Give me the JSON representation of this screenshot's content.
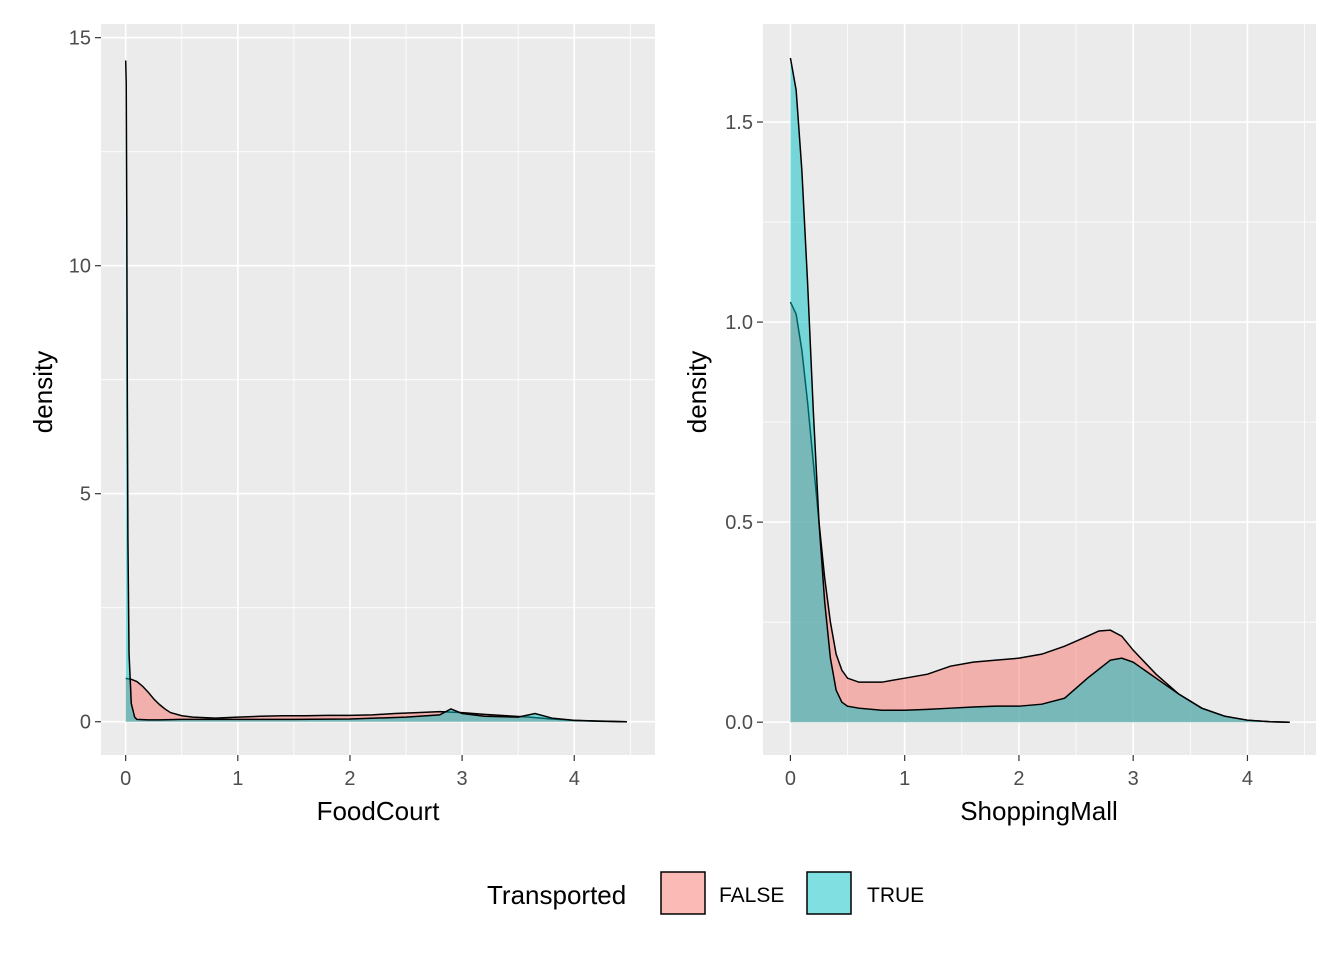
{
  "chart_data": [
    {
      "type": "area",
      "subtype": "density",
      "xlabel": "FoodCourt",
      "ylabel": "density",
      "xlim": [
        -0.22,
        4.72
      ],
      "ylim": [
        -0.73,
        15.3
      ],
      "x_ticks": [
        0,
        1,
        2,
        3,
        4
      ],
      "y_ticks": [
        0,
        5,
        10,
        15
      ],
      "grid": true,
      "series": [
        {
          "name": "FALSE",
          "x": [
            0,
            0.05,
            0.1,
            0.15,
            0.2,
            0.25,
            0.3,
            0.35,
            0.4,
            0.5,
            0.6,
            0.7,
            0.8,
            0.9,
            1.0,
            1.2,
            1.4,
            1.6,
            1.8,
            2.0,
            2.2,
            2.4,
            2.6,
            2.8,
            3.0,
            3.2,
            3.4,
            3.6,
            3.8,
            4.0,
            4.2,
            4.47
          ],
          "y": [
            0.95,
            0.93,
            0.88,
            0.78,
            0.65,
            0.5,
            0.38,
            0.28,
            0.2,
            0.13,
            0.1,
            0.09,
            0.08,
            0.09,
            0.1,
            0.12,
            0.13,
            0.13,
            0.14,
            0.14,
            0.15,
            0.18,
            0.2,
            0.22,
            0.2,
            0.16,
            0.13,
            0.1,
            0.06,
            0.03,
            0.01,
            0.0
          ]
        },
        {
          "name": "TRUE",
          "x": [
            0,
            0.005,
            0.01,
            0.015,
            0.02,
            0.03,
            0.05,
            0.08,
            0.1,
            0.2,
            0.3,
            0.5,
            1.0,
            1.5,
            2.0,
            2.5,
            2.8,
            2.9,
            3.0,
            3.2,
            3.5,
            3.65,
            3.8,
            4.0,
            4.47
          ],
          "y": [
            14.5,
            14.0,
            11.0,
            7.0,
            4.0,
            1.5,
            0.4,
            0.1,
            0.05,
            0.04,
            0.04,
            0.05,
            0.05,
            0.05,
            0.06,
            0.1,
            0.15,
            0.28,
            0.18,
            0.12,
            0.1,
            0.18,
            0.08,
            0.03,
            0.0
          ]
        }
      ]
    },
    {
      "type": "area",
      "subtype": "density",
      "xlabel": "ShoppingMall",
      "ylabel": "density",
      "xlim": [
        -0.24,
        4.6
      ],
      "ylim": [
        -0.082,
        1.745
      ],
      "x_ticks": [
        0,
        1,
        2,
        3,
        4
      ],
      "y_ticks": [
        0.0,
        0.5,
        1.0,
        1.5
      ],
      "y_tick_labels": [
        "0.0",
        "0.5",
        "1.0",
        "1.5"
      ],
      "grid": true,
      "series": [
        {
          "name": "FALSE",
          "x": [
            0,
            0.05,
            0.1,
            0.15,
            0.2,
            0.25,
            0.3,
            0.35,
            0.4,
            0.45,
            0.5,
            0.6,
            0.8,
            1.0,
            1.2,
            1.4,
            1.6,
            1.8,
            2.0,
            2.2,
            2.4,
            2.6,
            2.7,
            2.8,
            2.9,
            3.0,
            3.2,
            3.4,
            3.6,
            3.8,
            4.0,
            4.2,
            4.37
          ],
          "y": [
            1.05,
            1.02,
            0.93,
            0.8,
            0.65,
            0.5,
            0.36,
            0.25,
            0.17,
            0.13,
            0.11,
            0.1,
            0.1,
            0.11,
            0.12,
            0.14,
            0.15,
            0.155,
            0.16,
            0.17,
            0.19,
            0.215,
            0.228,
            0.23,
            0.215,
            0.18,
            0.12,
            0.07,
            0.035,
            0.015,
            0.005,
            0.001,
            0.0
          ]
        },
        {
          "name": "TRUE",
          "x": [
            0,
            0.05,
            0.1,
            0.15,
            0.2,
            0.25,
            0.3,
            0.35,
            0.4,
            0.45,
            0.5,
            0.6,
            0.8,
            1.0,
            1.2,
            1.4,
            1.6,
            1.8,
            2.0,
            2.2,
            2.4,
            2.6,
            2.8,
            2.9,
            3.0,
            3.2,
            3.4,
            3.6,
            3.8,
            4.0,
            4.2,
            4.37
          ],
          "y": [
            1.66,
            1.58,
            1.38,
            1.1,
            0.78,
            0.5,
            0.3,
            0.16,
            0.08,
            0.05,
            0.04,
            0.035,
            0.03,
            0.03,
            0.032,
            0.035,
            0.038,
            0.04,
            0.04,
            0.045,
            0.06,
            0.11,
            0.155,
            0.16,
            0.15,
            0.11,
            0.07,
            0.035,
            0.015,
            0.005,
            0.001,
            0.0
          ]
        }
      ]
    }
  ],
  "legend": {
    "title": "Transported",
    "position": "bottom",
    "items": [
      {
        "label": "FALSE",
        "color": "#F8766D"
      },
      {
        "label": "TRUE",
        "color": "#00BFC4"
      }
    ]
  },
  "colors": {
    "panel_background": "#EBEBEB",
    "grid_major": "#FFFFFF",
    "false_fill": "#F8766D",
    "true_fill": "#00BFC4",
    "outline": "#000000"
  }
}
